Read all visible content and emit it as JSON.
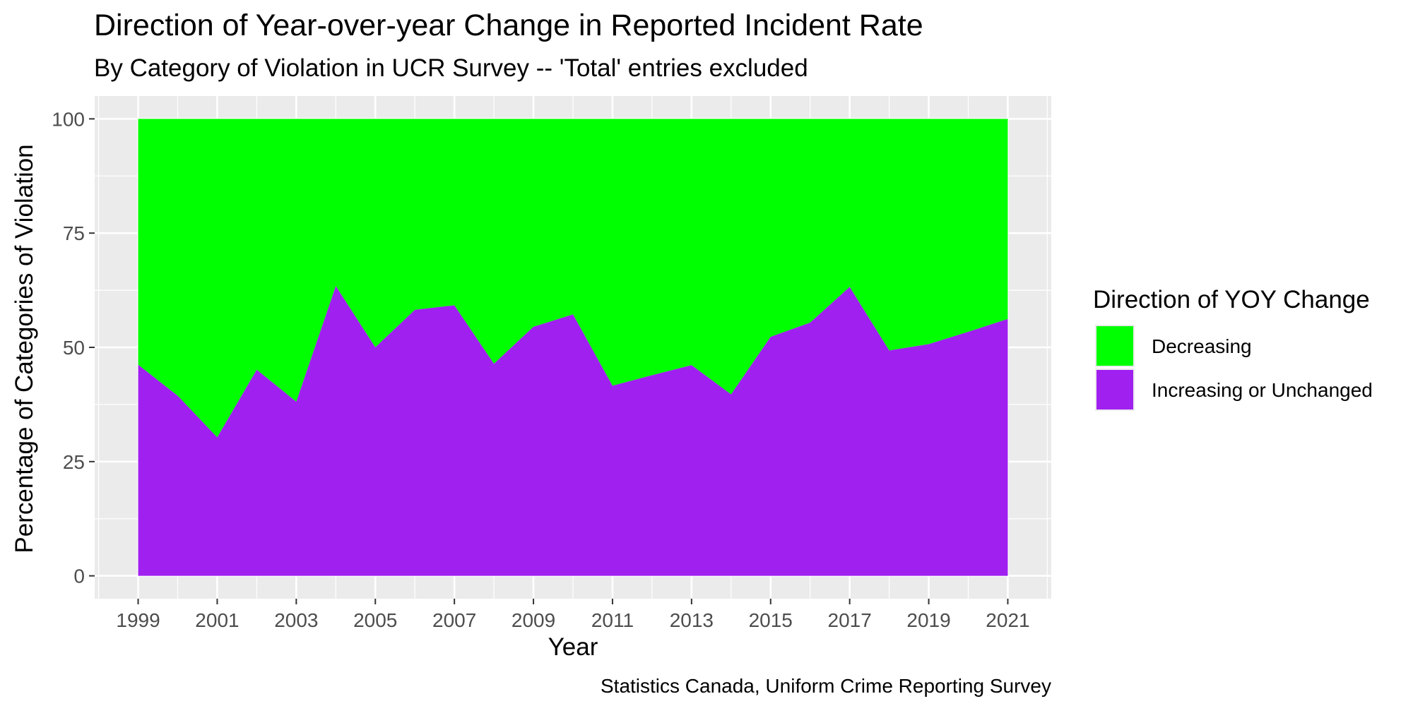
{
  "chart_data": {
    "type": "area",
    "stacked": true,
    "title": "Direction of Year-over-year Change in Reported Incident Rate",
    "subtitle": "By Category of Violation in UCR Survey -- 'Total' entries excluded",
    "xlabel": "Year",
    "ylabel": "Percentage of Categories of Violation",
    "caption": "Statistics Canada, Uniform Crime Reporting Survey",
    "xlim": [
      1997.9,
      2022.1
    ],
    "ylim": [
      -5,
      105
    ],
    "x_ticks": [
      1999,
      2001,
      2003,
      2005,
      2007,
      2009,
      2011,
      2013,
      2015,
      2017,
      2019,
      2021
    ],
    "x_tick_labels": [
      "1999",
      "2001",
      "2003",
      "2005",
      "2007",
      "2009",
      "2011",
      "2013",
      "2015",
      "2017",
      "2019",
      "2021"
    ],
    "y_ticks": [
      0,
      25,
      50,
      75,
      100
    ],
    "y_tick_labels": [
      "0",
      "25",
      "50",
      "75",
      "100"
    ],
    "grid": true,
    "legend": {
      "title": "Direction of YOY Change",
      "position": "right"
    },
    "x": [
      1999,
      2000,
      2001,
      2002,
      2003,
      2004,
      2005,
      2006,
      2007,
      2008,
      2009,
      2010,
      2011,
      2012,
      2013,
      2014,
      2015,
      2016,
      2017,
      2018,
      2019,
      2020,
      2021
    ],
    "series": [
      {
        "name": "Decreasing",
        "color": "#00ff00",
        "values": [
          53.8,
          60.6,
          69.7,
          54.9,
          61.9,
          36.6,
          50.0,
          41.8,
          40.8,
          53.6,
          45.5,
          42.8,
          58.4,
          56.1,
          53.9,
          60.3,
          47.7,
          44.6,
          36.8,
          50.7,
          49.3,
          46.6,
          43.8
        ]
      },
      {
        "name": "Increasing or Unchanged",
        "color": "#a020f0",
        "values": [
          46.2,
          39.4,
          30.3,
          45.1,
          38.1,
          63.4,
          50.0,
          58.2,
          59.2,
          46.4,
          54.5,
          57.2,
          41.6,
          43.9,
          46.1,
          39.7,
          52.3,
          55.4,
          63.2,
          49.3,
          50.7,
          53.4,
          56.2
        ]
      }
    ]
  },
  "colors": {
    "panel_background": "#ebebeb",
    "grid_line": "#ffffff",
    "tick_text": "#4d4d4d"
  }
}
